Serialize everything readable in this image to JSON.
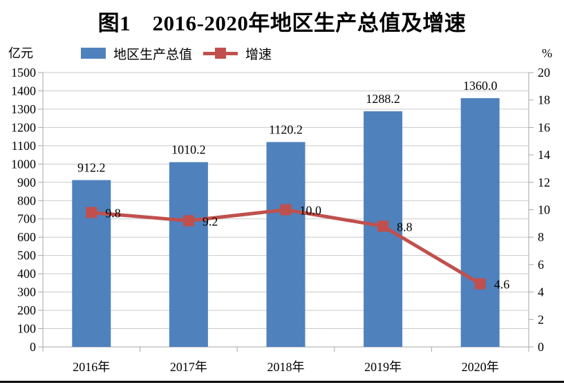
{
  "title": "图1　2016-2020年地区生产总值及增速",
  "axis_units": {
    "left": "亿元",
    "right": "%"
  },
  "legend": {
    "items": [
      {
        "label": "地区生产总值",
        "swatch": "bar"
      },
      {
        "label": "增速",
        "swatch": "line-square-marker"
      }
    ]
  },
  "chart_data": {
    "type": "bar",
    "subtype": "bar+line combo",
    "title": "图1　2016-2020年地区生产总值及增速",
    "categories": [
      "2016年",
      "2017年",
      "2018年",
      "2019年",
      "2020年"
    ],
    "series": [
      {
        "name": "地区生产总值",
        "type": "bar",
        "axis": "left",
        "unit": "亿元",
        "color": "#4F81BD",
        "values": [
          912.2,
          1010.2,
          1120.2,
          1288.2,
          1360.0
        ],
        "labels": [
          "912.2",
          "1010.2",
          "1120.2",
          "1288.2",
          "1360.0"
        ]
      },
      {
        "name": "增速",
        "type": "line",
        "axis": "right",
        "unit": "%",
        "color": "#C0504D",
        "marker": "square",
        "values": [
          9.8,
          9.2,
          10.0,
          8.8,
          4.6
        ],
        "labels": [
          "9.8",
          "9.2",
          "10.0",
          "8.8",
          "4.6"
        ]
      }
    ],
    "left_axis": {
      "label": "亿元",
      "min": 0,
      "max": 1500,
      "step": 100
    },
    "right_axis": {
      "label": "%",
      "min": 0,
      "max": 20,
      "step": 2
    },
    "grid": true,
    "legend_position": "top"
  },
  "colors": {
    "bar": "#4F81BD",
    "line": "#C0504D",
    "grid": "#C9C9C9",
    "axis": "#A6A6A6",
    "text": "#000000",
    "bottom_rule": "#000000"
  }
}
